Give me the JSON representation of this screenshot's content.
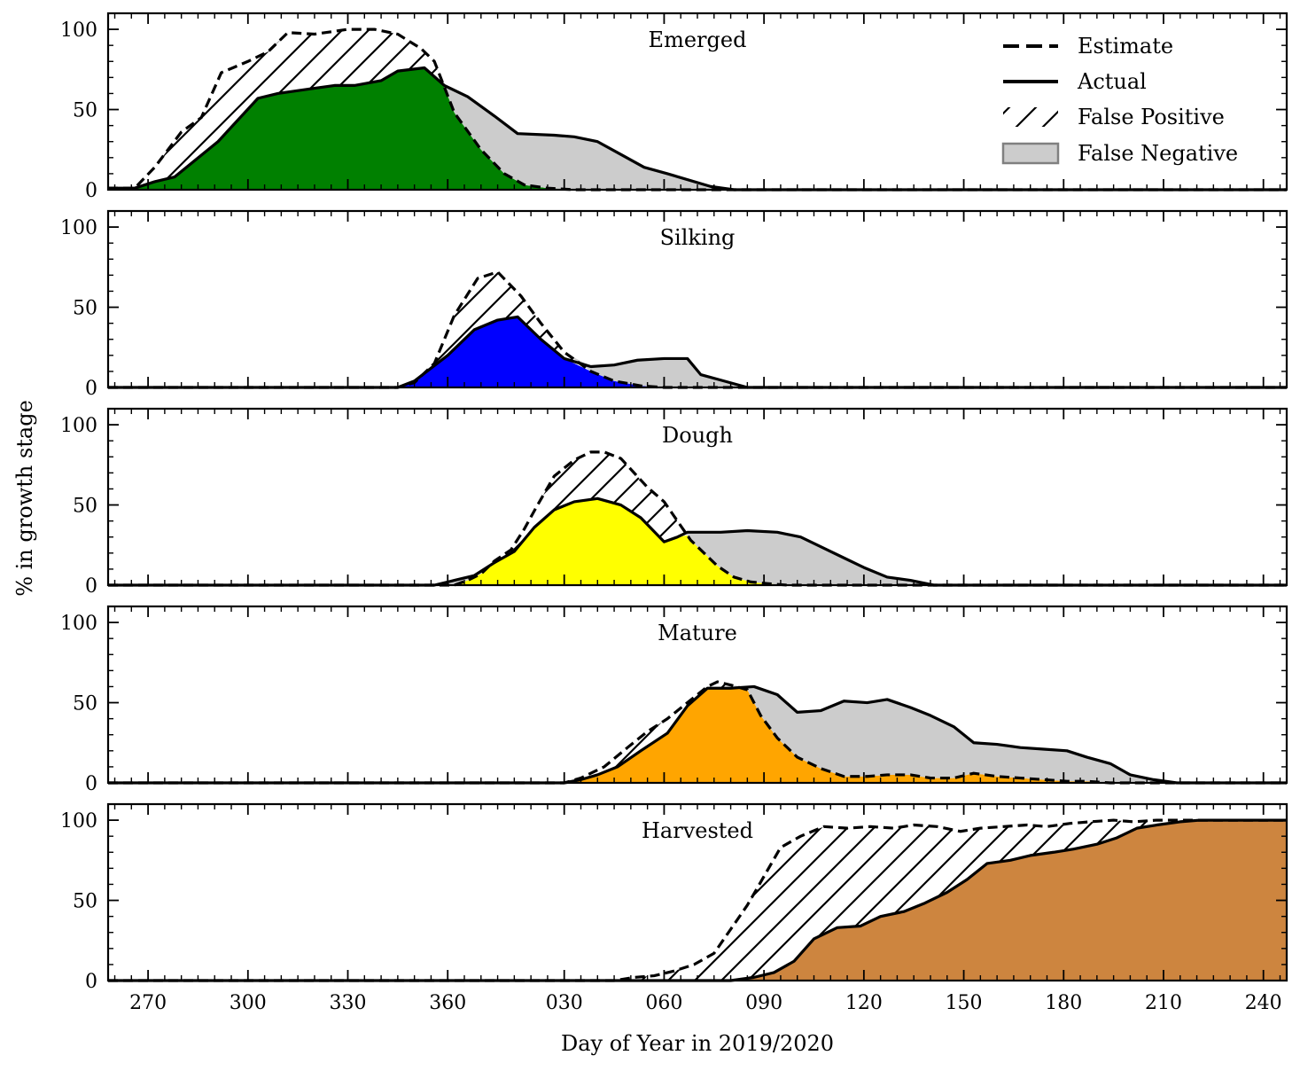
{
  "chart_data": {
    "type": "area",
    "xlabel": "Day of Year in 2019/2020",
    "ylabel": "% in growth stage",
    "xlim": [
      258,
      612
    ],
    "ylim": [
      0,
      110
    ],
    "x_ticks": [
      {
        "value": 270,
        "label": "270"
      },
      {
        "value": 300,
        "label": "300"
      },
      {
        "value": 330,
        "label": "330"
      },
      {
        "value": 360,
        "label": "360"
      },
      {
        "value": 395,
        "label": "030"
      },
      {
        "value": 425,
        "label": "060"
      },
      {
        "value": 455,
        "label": "090"
      },
      {
        "value": 485,
        "label": "120"
      },
      {
        "value": 515,
        "label": "150"
      },
      {
        "value": 545,
        "label": "180"
      },
      {
        "value": 575,
        "label": "210"
      },
      {
        "value": 605,
        "label": "240"
      }
    ],
    "y_ticks": [
      {
        "value": 0,
        "label": "0"
      },
      {
        "value": 50,
        "label": "50"
      },
      {
        "value": 100,
        "label": "100"
      }
    ],
    "legend": {
      "placement": "top-right",
      "entries": [
        {
          "style": "dashed",
          "label": "Estimate"
        },
        {
          "style": "solid",
          "label": "Actual"
        },
        {
          "style": "hatch",
          "label": "False Positive"
        },
        {
          "style": "gray-fill",
          "label": "False Negative"
        }
      ]
    },
    "colors": {
      "false_negative": "#cccccc",
      "false_negative_edge": "#808080",
      "line": "#000000"
    },
    "panels": [
      {
        "title": "Emerged",
        "color": "#008000",
        "actual": [
          [
            258,
            1
          ],
          [
            266,
            1
          ],
          [
            272,
            5
          ],
          [
            278,
            8
          ],
          [
            291,
            30
          ],
          [
            303,
            57
          ],
          [
            309,
            60
          ],
          [
            319,
            63
          ],
          [
            326,
            65
          ],
          [
            332,
            65
          ],
          [
            340,
            68
          ],
          [
            345,
            74
          ],
          [
            353,
            76
          ],
          [
            359,
            65
          ],
          [
            366,
            58
          ],
          [
            374,
            46
          ],
          [
            381,
            35
          ],
          [
            392,
            34
          ],
          [
            398,
            33
          ],
          [
            405,
            30
          ],
          [
            412,
            22
          ],
          [
            419,
            14
          ],
          [
            426,
            10
          ],
          [
            439,
            2
          ],
          [
            446,
            0
          ],
          [
            612,
            0
          ]
        ],
        "estimate": [
          [
            258,
            1
          ],
          [
            266,
            1
          ],
          [
            272,
            14
          ],
          [
            280,
            36
          ],
          [
            286,
            45
          ],
          [
            292,
            73
          ],
          [
            300,
            80
          ],
          [
            306,
            86
          ],
          [
            312,
            98
          ],
          [
            320,
            97
          ],
          [
            330,
            100
          ],
          [
            338,
            100
          ],
          [
            345,
            97
          ],
          [
            352,
            88
          ],
          [
            356,
            80
          ],
          [
            362,
            48
          ],
          [
            370,
            25
          ],
          [
            377,
            10
          ],
          [
            383,
            3
          ],
          [
            390,
            1
          ],
          [
            398,
            0
          ],
          [
            612,
            0
          ]
        ]
      },
      {
        "title": "Silking",
        "color": "#0000ff",
        "actual": [
          [
            258,
            0
          ],
          [
            345,
            0
          ],
          [
            350,
            4
          ],
          [
            360,
            20
          ],
          [
            368,
            36
          ],
          [
            375,
            42
          ],
          [
            381,
            44
          ],
          [
            388,
            30
          ],
          [
            395,
            18
          ],
          [
            403,
            13
          ],
          [
            410,
            14
          ],
          [
            417,
            17
          ],
          [
            425,
            18
          ],
          [
            432,
            18
          ],
          [
            436,
            8
          ],
          [
            443,
            4
          ],
          [
            450,
            0
          ],
          [
            612,
            0
          ]
        ],
        "estimate": [
          [
            258,
            0
          ],
          [
            345,
            0
          ],
          [
            350,
            3
          ],
          [
            356,
            15
          ],
          [
            362,
            45
          ],
          [
            369,
            68
          ],
          [
            375,
            72
          ],
          [
            382,
            57
          ],
          [
            388,
            40
          ],
          [
            395,
            22
          ],
          [
            403,
            10
          ],
          [
            410,
            4
          ],
          [
            418,
            1
          ],
          [
            425,
            0
          ],
          [
            612,
            0
          ]
        ]
      },
      {
        "title": "Dough",
        "color": "#ffff00",
        "actual": [
          [
            258,
            0
          ],
          [
            356,
            0
          ],
          [
            362,
            3
          ],
          [
            368,
            6
          ],
          [
            374,
            14
          ],
          [
            380,
            21
          ],
          [
            386,
            36
          ],
          [
            392,
            47
          ],
          [
            398,
            52
          ],
          [
            405,
            54
          ],
          [
            412,
            50
          ],
          [
            418,
            42
          ],
          [
            425,
            27
          ],
          [
            429,
            30
          ],
          [
            432,
            33
          ],
          [
            442,
            33
          ],
          [
            450,
            34
          ],
          [
            459,
            33
          ],
          [
            466,
            30
          ],
          [
            472,
            24
          ],
          [
            479,
            17
          ],
          [
            485,
            11
          ],
          [
            492,
            5
          ],
          [
            499,
            3
          ],
          [
            506,
            0
          ],
          [
            612,
            0
          ]
        ],
        "estimate": [
          [
            258,
            0
          ],
          [
            362,
            0
          ],
          [
            366,
            3
          ],
          [
            370,
            7
          ],
          [
            374,
            15
          ],
          [
            379,
            22
          ],
          [
            383,
            35
          ],
          [
            387,
            50
          ],
          [
            392,
            68
          ],
          [
            398,
            78
          ],
          [
            403,
            83
          ],
          [
            407,
            83
          ],
          [
            412,
            79
          ],
          [
            416,
            70
          ],
          [
            420,
            61
          ],
          [
            425,
            52
          ],
          [
            429,
            40
          ],
          [
            433,
            28
          ],
          [
            437,
            20
          ],
          [
            441,
            12
          ],
          [
            446,
            5
          ],
          [
            451,
            2
          ],
          [
            456,
            1
          ],
          [
            462,
            0
          ],
          [
            612,
            0
          ]
        ]
      },
      {
        "title": "Mature",
        "color": "#ffa500",
        "actual": [
          [
            258,
            0
          ],
          [
            395,
            0
          ],
          [
            400,
            2
          ],
          [
            405,
            5
          ],
          [
            411,
            10
          ],
          [
            418,
            20
          ],
          [
            426,
            31
          ],
          [
            432,
            48
          ],
          [
            438,
            59
          ],
          [
            445,
            59
          ],
          [
            452,
            60
          ],
          [
            459,
            55
          ],
          [
            465,
            44
          ],
          [
            472,
            45
          ],
          [
            479,
            51
          ],
          [
            486,
            50
          ],
          [
            492,
            52
          ],
          [
            499,
            47
          ],
          [
            505,
            42
          ],
          [
            512,
            35
          ],
          [
            518,
            25
          ],
          [
            525,
            24
          ],
          [
            532,
            22
          ],
          [
            539,
            21
          ],
          [
            546,
            20
          ],
          [
            552,
            16
          ],
          [
            559,
            12
          ],
          [
            565,
            5
          ],
          [
            572,
            2
          ],
          [
            579,
            0
          ],
          [
            612,
            0
          ]
        ],
        "estimate": [
          [
            258,
            0
          ],
          [
            395,
            0
          ],
          [
            400,
            3
          ],
          [
            407,
            10
          ],
          [
            414,
            22
          ],
          [
            420,
            32
          ],
          [
            426,
            40
          ],
          [
            432,
            50
          ],
          [
            438,
            60
          ],
          [
            441,
            63
          ],
          [
            445,
            61
          ],
          [
            450,
            58
          ],
          [
            454,
            42
          ],
          [
            459,
            28
          ],
          [
            465,
            16
          ],
          [
            472,
            9
          ],
          [
            479,
            4
          ],
          [
            486,
            4
          ],
          [
            492,
            5
          ],
          [
            499,
            5
          ],
          [
            505,
            3
          ],
          [
            512,
            3
          ],
          [
            518,
            6
          ],
          [
            525,
            4
          ],
          [
            532,
            3
          ],
          [
            539,
            2
          ],
          [
            546,
            1
          ],
          [
            552,
            1
          ],
          [
            559,
            0
          ],
          [
            612,
            0
          ]
        ]
      },
      {
        "title": "Harvested",
        "color": "#cd853f",
        "actual": [
          [
            258,
            0
          ],
          [
            445,
            0
          ],
          [
            452,
            2
          ],
          [
            458,
            5
          ],
          [
            464,
            12
          ],
          [
            470,
            26
          ],
          [
            477,
            33
          ],
          [
            484,
            34
          ],
          [
            490,
            40
          ],
          [
            497,
            43
          ],
          [
            503,
            48
          ],
          [
            510,
            55
          ],
          [
            516,
            63
          ],
          [
            522,
            73
          ],
          [
            529,
            75
          ],
          [
            535,
            78
          ],
          [
            542,
            80
          ],
          [
            548,
            82
          ],
          [
            555,
            85
          ],
          [
            561,
            89
          ],
          [
            567,
            95
          ],
          [
            573,
            97
          ],
          [
            580,
            99
          ],
          [
            586,
            100
          ],
          [
            612,
            100
          ]
        ],
        "estimate": [
          [
            258,
            0
          ],
          [
            410,
            0
          ],
          [
            416,
            2
          ],
          [
            422,
            3
          ],
          [
            428,
            6
          ],
          [
            434,
            10
          ],
          [
            440,
            17
          ],
          [
            445,
            32
          ],
          [
            450,
            47
          ],
          [
            455,
            65
          ],
          [
            460,
            83
          ],
          [
            466,
            90
          ],
          [
            473,
            96
          ],
          [
            480,
            95
          ],
          [
            487,
            96
          ],
          [
            494,
            95
          ],
          [
            500,
            97
          ],
          [
            507,
            96
          ],
          [
            514,
            93
          ],
          [
            520,
            95
          ],
          [
            527,
            96
          ],
          [
            534,
            97
          ],
          [
            540,
            96
          ],
          [
            547,
            98
          ],
          [
            553,
            99
          ],
          [
            560,
            100
          ],
          [
            566,
            99
          ],
          [
            573,
            100
          ],
          [
            580,
            100
          ],
          [
            586,
            100
          ],
          [
            612,
            100
          ]
        ]
      }
    ]
  }
}
